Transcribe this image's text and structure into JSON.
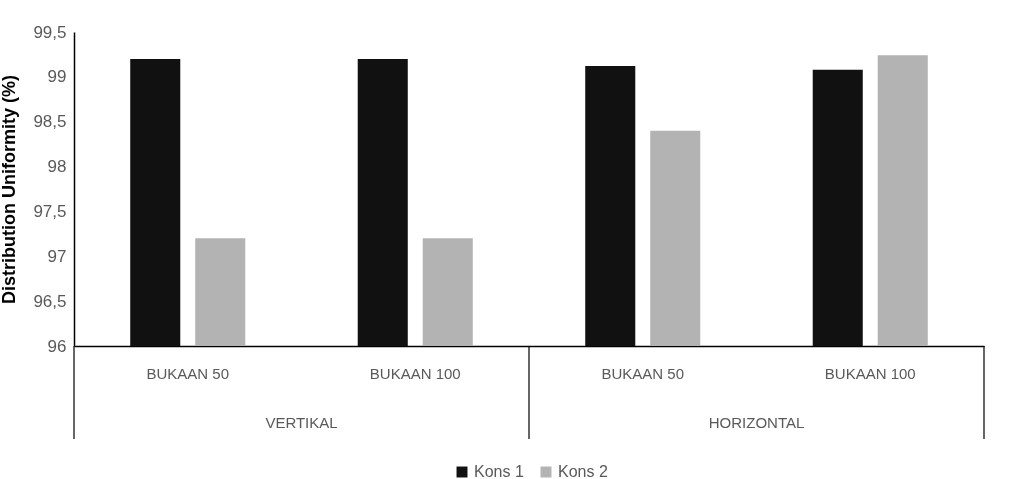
{
  "chart_data": {
    "type": "bar",
    "ylabel": "Distribution Uniformity (%)",
    "categories": [
      "BUKAAN 50",
      "BUKAAN 100",
      "BUKAAN 50",
      "BUKAAN 100"
    ],
    "annotations": [
      "VERTIKAL",
      "HORIZONTAL"
    ],
    "series": [
      {
        "name": "Kons 1",
        "color": "#111111",
        "values": [
          99.2,
          99.2,
          99.12,
          99.08
        ]
      },
      {
        "name": "Kons 2",
        "color": "#b3b3b3",
        "values": [
          97.2,
          97.2,
          98.4,
          99.24
        ]
      }
    ],
    "ylim": [
      96,
      99.5
    ],
    "yticks": [
      96,
      {
        "value": 96.5,
        "label": "96,5"
      },
      97,
      {
        "value": 97.5,
        "label": "97,5"
      },
      98,
      {
        "value": 98.5,
        "label": "98,5"
      },
      99,
      {
        "value": 99.5,
        "label": "99,5"
      }
    ],
    "grid": false,
    "legend": "bottom"
  }
}
